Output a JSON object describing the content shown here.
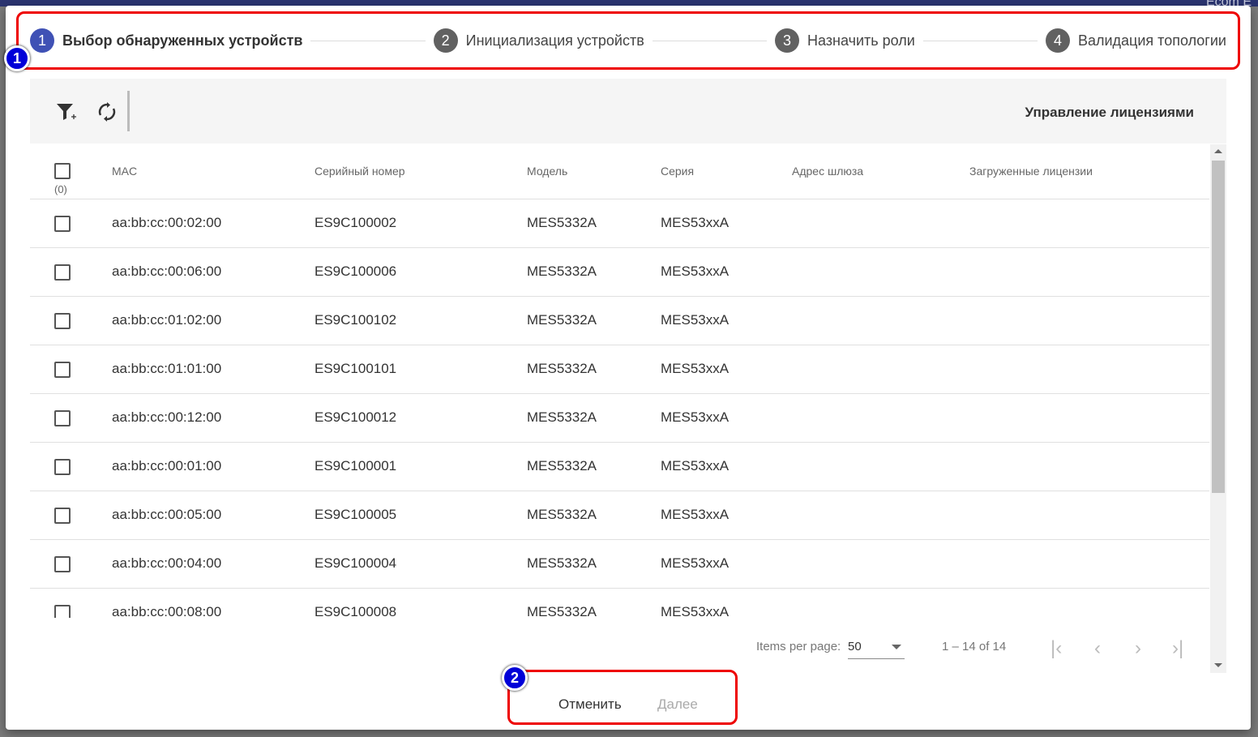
{
  "background": {
    "corner_text": "Ecom E"
  },
  "stepper": {
    "steps": [
      {
        "number": "1",
        "label": "Выбор обнаруженных устройств",
        "active": true
      },
      {
        "number": "2",
        "label": "Инициализация устройств",
        "active": false
      },
      {
        "number": "3",
        "label": "Назначить роли",
        "active": false
      },
      {
        "number": "4",
        "label": "Валидация топологии",
        "active": false
      }
    ]
  },
  "markers": {
    "m1": "1",
    "m2": "2"
  },
  "toolbar": {
    "filter_icon": "filter-add-icon",
    "refresh_icon": "refresh-icon",
    "license_label": "Управление лицензиями"
  },
  "table": {
    "selected_count": "(0)",
    "columns": [
      "MAC",
      "Серийный номер",
      "Модель",
      "Серия",
      "Адрес шлюза",
      "Загруженные лицензии"
    ],
    "rows": [
      [
        "aa:bb:cc:00:02:00",
        "ES9C100002",
        "MES5332A",
        "MES53xxA",
        "",
        ""
      ],
      [
        "aa:bb:cc:00:06:00",
        "ES9C100006",
        "MES5332A",
        "MES53xxA",
        "",
        ""
      ],
      [
        "aa:bb:cc:01:02:00",
        "ES9C100102",
        "MES5332A",
        "MES53xxA",
        "",
        ""
      ],
      [
        "aa:bb:cc:01:01:00",
        "ES9C100101",
        "MES5332A",
        "MES53xxA",
        "",
        ""
      ],
      [
        "aa:bb:cc:00:12:00",
        "ES9C100012",
        "MES5332A",
        "MES53xxA",
        "",
        ""
      ],
      [
        "aa:bb:cc:00:01:00",
        "ES9C100001",
        "MES5332A",
        "MES53xxA",
        "",
        ""
      ],
      [
        "aa:bb:cc:00:05:00",
        "ES9C100005",
        "MES5332A",
        "MES53xxA",
        "",
        ""
      ],
      [
        "aa:bb:cc:00:04:00",
        "ES9C100004",
        "MES5332A",
        "MES53xxA",
        "",
        ""
      ],
      [
        "aa:bb:cc:00:08:00",
        "ES9C100008",
        "MES5332A",
        "MES53xxA",
        "",
        ""
      ]
    ]
  },
  "paginator": {
    "items_per_page_label": "Items per page:",
    "page_size": "50",
    "range": "1 – 14 of 14"
  },
  "actions": {
    "cancel": "Отменить",
    "next": "Далее"
  },
  "colors": {
    "accent": "#3f51b5",
    "highlight": "#ee0000",
    "marker": "#0000d8"
  }
}
